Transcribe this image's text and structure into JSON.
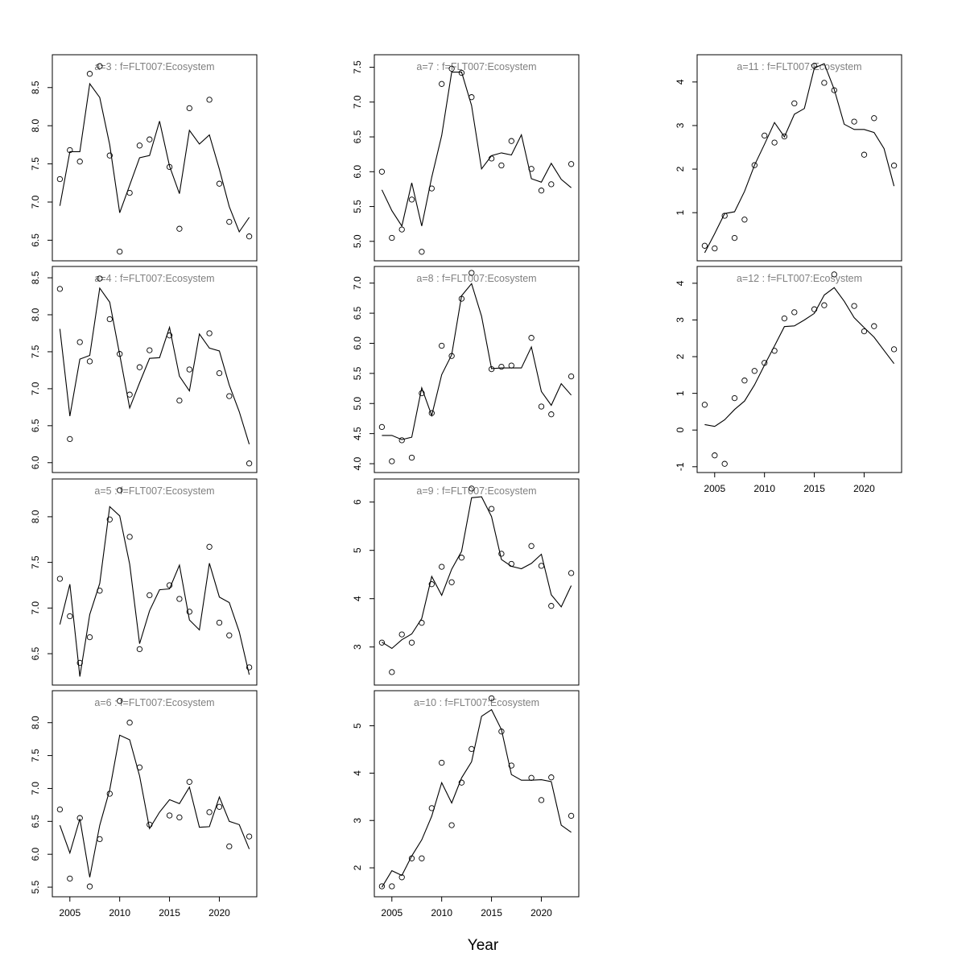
{
  "figure": {
    "xlabel": "Year",
    "x_ticks": [
      2005,
      2010,
      2015,
      2020
    ]
  },
  "chart_data": [
    {
      "type": "scatter",
      "title": "a=3  :  f=FLT007:Ecosystem",
      "xlabel": "",
      "ylabel": "",
      "xlim": [
        2004,
        2023
      ],
      "ylim": [
        6.33,
        8.83
      ],
      "y_ticks": [
        6.5,
        7.0,
        7.5,
        8.0,
        8.5
      ],
      "show_x_ticks": false,
      "series": [
        {
          "mark": "points",
          "x": [
            2004,
            2005,
            2006,
            2007,
            2008,
            2009,
            2010,
            2011,
            2012,
            2013,
            2015,
            2016,
            2017,
            2019,
            2020,
            2021,
            2023
          ],
          "y": [
            7.3,
            7.68,
            7.53,
            8.68,
            8.78,
            7.61,
            6.35,
            7.12,
            7.74,
            7.82,
            7.46,
            6.65,
            8.23,
            8.34,
            7.24,
            6.74,
            6.55
          ]
        },
        {
          "mark": "line",
          "x": [
            2004,
            2005,
            2006,
            2007,
            2008,
            2009,
            2010,
            2011,
            2012,
            2013,
            2014,
            2015,
            2016,
            2017,
            2018,
            2019,
            2020,
            2021,
            2022,
            2023
          ],
          "y": [
            6.95,
            7.66,
            7.66,
            8.55,
            8.37,
            7.75,
            6.86,
            7.22,
            7.58,
            7.61,
            8.06,
            7.47,
            7.11,
            7.94,
            7.76,
            7.88,
            7.43,
            6.94,
            6.61,
            6.8
          ]
        }
      ]
    },
    {
      "type": "scatter",
      "title": "a=4  :  f=FLT007:Ecosystem",
      "xlabel": "",
      "ylabel": "",
      "xlim": [
        2004,
        2023
      ],
      "ylim": [
        5.97,
        8.55
      ],
      "y_ticks": [
        6.0,
        6.5,
        7.0,
        7.5,
        8.0,
        8.5
      ],
      "show_x_ticks": false,
      "series": [
        {
          "mark": "points",
          "x": [
            2004,
            2005,
            2006,
            2007,
            2008,
            2009,
            2010,
            2011,
            2012,
            2013,
            2015,
            2016,
            2017,
            2019,
            2020,
            2021,
            2023
          ],
          "y": [
            8.35,
            6.32,
            7.63,
            7.37,
            8.49,
            7.94,
            7.47,
            6.92,
            7.29,
            7.52,
            7.72,
            6.84,
            7.26,
            7.75,
            7.21,
            6.9,
            5.99
          ]
        },
        {
          "mark": "line",
          "x": [
            2004,
            2005,
            2006,
            2007,
            2008,
            2009,
            2010,
            2011,
            2012,
            2013,
            2014,
            2015,
            2016,
            2017,
            2018,
            2019,
            2020,
            2021,
            2022,
            2023
          ],
          "y": [
            7.81,
            6.63,
            7.4,
            7.45,
            8.36,
            8.17,
            7.46,
            6.74,
            7.08,
            7.41,
            7.42,
            7.83,
            7.17,
            6.97,
            7.74,
            7.55,
            7.51,
            7.05,
            6.69,
            6.25
          ]
        }
      ]
    },
    {
      "type": "scatter",
      "title": "a=5  :  f=FLT007:Ecosystem",
      "xlabel": "",
      "ylabel": "",
      "xlim": [
        2004,
        2023
      ],
      "ylim": [
        6.24,
        8.33
      ],
      "y_ticks": [
        6.5,
        7.0,
        7.5,
        8.0
      ],
      "show_x_ticks": false,
      "series": [
        {
          "mark": "points",
          "x": [
            2004,
            2005,
            2006,
            2007,
            2008,
            2009,
            2010,
            2011,
            2012,
            2013,
            2015,
            2016,
            2017,
            2019,
            2020,
            2021,
            2023
          ],
          "y": [
            7.32,
            6.91,
            6.4,
            6.68,
            7.19,
            7.97,
            8.29,
            7.78,
            6.55,
            7.14,
            7.25,
            7.1,
            6.96,
            7.67,
            6.84,
            6.7,
            6.35
          ]
        },
        {
          "mark": "line",
          "x": [
            2004,
            2005,
            2006,
            2007,
            2008,
            2009,
            2010,
            2011,
            2012,
            2013,
            2014,
            2015,
            2016,
            2017,
            2018,
            2019,
            2020,
            2021,
            2022,
            2023
          ],
          "y": [
            6.82,
            7.26,
            6.25,
            6.93,
            7.27,
            8.11,
            8.01,
            7.48,
            6.61,
            6.97,
            7.2,
            7.21,
            7.47,
            6.87,
            6.76,
            7.49,
            7.12,
            7.06,
            6.74,
            6.27
          ]
        }
      ]
    },
    {
      "type": "scatter",
      "title": "a=6  :  f=FLT007:Ecosystem",
      "xlabel": "",
      "ylabel": "",
      "xlim": [
        2004,
        2023
      ],
      "ylim": [
        5.47,
        8.37
      ],
      "y_ticks": [
        5.5,
        6.0,
        6.5,
        7.0,
        7.5,
        8.0
      ],
      "show_x_ticks": true,
      "series": [
        {
          "mark": "points",
          "x": [
            2004,
            2005,
            2006,
            2007,
            2008,
            2009,
            2010,
            2011,
            2012,
            2013,
            2015,
            2016,
            2017,
            2019,
            2020,
            2021,
            2023
          ],
          "y": [
            6.68,
            5.63,
            6.55,
            5.51,
            6.23,
            6.92,
            8.33,
            8.0,
            7.32,
            6.45,
            6.59,
            6.56,
            7.1,
            6.64,
            6.72,
            6.12,
            6.27
          ]
        },
        {
          "mark": "line",
          "x": [
            2004,
            2005,
            2006,
            2007,
            2008,
            2009,
            2010,
            2011,
            2012,
            2013,
            2014,
            2015,
            2016,
            2017,
            2018,
            2019,
            2020,
            2021,
            2022,
            2023
          ],
          "y": [
            6.44,
            6.02,
            6.54,
            5.65,
            6.44,
            6.98,
            7.81,
            7.74,
            7.19,
            6.39,
            6.64,
            6.83,
            6.77,
            7.02,
            6.41,
            6.42,
            6.87,
            6.5,
            6.45,
            6.08
          ]
        }
      ]
    },
    {
      "type": "scatter",
      "title": "a=7  :  f=FLT007:Ecosystem",
      "xlabel": "",
      "ylabel": "",
      "xlim": [
        2004,
        2023
      ],
      "ylim": [
        4.83,
        7.57
      ],
      "y_ticks": [
        5.0,
        5.5,
        6.0,
        6.5,
        7.0,
        7.5
      ],
      "show_x_ticks": false,
      "series": [
        {
          "mark": "points",
          "x": [
            2004,
            2005,
            2006,
            2007,
            2008,
            2009,
            2010,
            2011,
            2012,
            2013,
            2015,
            2016,
            2017,
            2019,
            2020,
            2021,
            2023
          ],
          "y": [
            6.0,
            5.05,
            5.17,
            5.6,
            4.85,
            5.76,
            7.26,
            7.48,
            7.42,
            7.07,
            6.19,
            6.09,
            6.44,
            6.04,
            5.73,
            5.82,
            6.11
          ]
        },
        {
          "mark": "line",
          "x": [
            2004,
            2005,
            2006,
            2007,
            2008,
            2009,
            2010,
            2011,
            2012,
            2013,
            2014,
            2015,
            2016,
            2017,
            2018,
            2019,
            2020,
            2021,
            2022,
            2023
          ],
          "y": [
            5.74,
            5.44,
            5.22,
            5.84,
            5.22,
            5.92,
            6.52,
            7.43,
            7.43,
            6.95,
            6.04,
            6.23,
            6.27,
            6.24,
            6.53,
            5.9,
            5.85,
            6.12,
            5.89,
            5.77
          ]
        }
      ]
    },
    {
      "type": "scatter",
      "title": "a=8  :  f=FLT007:Ecosystem",
      "xlabel": "",
      "ylabel": "",
      "xlim": [
        2004,
        2023
      ],
      "ylim": [
        3.98,
        7.15
      ],
      "y_ticks": [
        4.0,
        4.5,
        5.0,
        5.5,
        6.0,
        6.5,
        7.0
      ],
      "show_x_ticks": false,
      "series": [
        {
          "mark": "points",
          "x": [
            2004,
            2005,
            2006,
            2007,
            2008,
            2009,
            2010,
            2011,
            2012,
            2013,
            2015,
            2016,
            2017,
            2019,
            2020,
            2021,
            2023
          ],
          "y": [
            4.61,
            4.04,
            4.39,
            4.1,
            5.17,
            4.84,
            5.96,
            5.79,
            6.74,
            7.17,
            5.57,
            5.61,
            5.63,
            6.09,
            4.95,
            4.82,
            5.45
          ]
        },
        {
          "mark": "line",
          "x": [
            2004,
            2005,
            2006,
            2007,
            2008,
            2009,
            2010,
            2011,
            2012,
            2013,
            2014,
            2015,
            2016,
            2017,
            2018,
            2019,
            2020,
            2021,
            2022,
            2023
          ],
          "y": [
            4.47,
            4.47,
            4.4,
            4.44,
            5.26,
            4.8,
            5.48,
            5.81,
            6.79,
            6.99,
            6.45,
            5.58,
            5.59,
            5.59,
            5.59,
            5.94,
            5.2,
            4.97,
            5.33,
            5.14
          ]
        }
      ]
    },
    {
      "type": "scatter",
      "title": "a=9  :  f=FLT007:Ecosystem",
      "xlabel": "",
      "ylabel": "",
      "xlim": [
        2004,
        2023
      ],
      "ylim": [
        2.37,
        6.32
      ],
      "y_ticks": [
        3,
        4,
        5,
        6
      ],
      "show_x_ticks": false,
      "series": [
        {
          "mark": "points",
          "x": [
            2004,
            2005,
            2006,
            2007,
            2008,
            2009,
            2010,
            2011,
            2012,
            2013,
            2015,
            2016,
            2017,
            2019,
            2020,
            2021,
            2023
          ],
          "y": [
            3.09,
            2.48,
            3.26,
            3.09,
            3.5,
            4.3,
            4.66,
            4.34,
            4.85,
            6.28,
            5.86,
            4.93,
            4.72,
            5.09,
            4.68,
            3.85,
            4.53
          ]
        },
        {
          "mark": "line",
          "x": [
            2004,
            2005,
            2006,
            2007,
            2008,
            2009,
            2010,
            2011,
            2012,
            2013,
            2014,
            2015,
            2016,
            2017,
            2018,
            2019,
            2020,
            2021,
            2022,
            2023
          ],
          "y": [
            3.1,
            2.97,
            3.15,
            3.27,
            3.59,
            4.46,
            4.07,
            4.61,
            4.98,
            6.09,
            6.11,
            5.7,
            4.81,
            4.67,
            4.62,
            4.73,
            4.92,
            4.08,
            3.83,
            4.27
          ]
        }
      ]
    },
    {
      "type": "scatter",
      "title": "a=10  :  f=FLT007:Ecosystem",
      "xlabel": "",
      "ylabel": "",
      "xlim": [
        2004,
        2023
      ],
      "ylim": [
        1.55,
        5.58
      ],
      "y_ticks": [
        2,
        3,
        4,
        5
      ],
      "show_x_ticks": true,
      "series": [
        {
          "mark": "points",
          "x": [
            2004,
            2005,
            2006,
            2007,
            2008,
            2009,
            2010,
            2011,
            2012,
            2013,
            2015,
            2016,
            2017,
            2019,
            2020,
            2021,
            2023
          ],
          "y": [
            1.61,
            1.61,
            1.8,
            2.2,
            2.2,
            3.26,
            4.22,
            2.9,
            3.8,
            4.51,
            5.58,
            4.88,
            4.16,
            3.9,
            3.43,
            3.91,
            3.1
          ]
        },
        {
          "mark": "line",
          "x": [
            2004,
            2005,
            2006,
            2007,
            2008,
            2009,
            2010,
            2011,
            2012,
            2013,
            2014,
            2015,
            2016,
            2017,
            2018,
            2019,
            2020,
            2021,
            2022,
            2023
          ],
          "y": [
            1.59,
            1.94,
            1.84,
            2.25,
            2.59,
            3.09,
            3.8,
            3.37,
            3.9,
            4.24,
            5.2,
            5.34,
            4.92,
            3.97,
            3.85,
            3.85,
            3.86,
            3.82,
            2.9,
            2.75
          ]
        }
      ]
    },
    {
      "type": "scatter",
      "title": "a=11  :  f=FLT007:Ecosystem",
      "xlabel": "",
      "ylabel": "",
      "xlim": [
        2004,
        2023
      ],
      "ylim": [
        0.07,
        4.45
      ],
      "y_ticks": [
        1,
        2,
        3,
        4
      ],
      "show_x_ticks": false,
      "series": [
        {
          "mark": "points",
          "x": [
            2004,
            2005,
            2006,
            2007,
            2008,
            2009,
            2010,
            2011,
            2012,
            2013,
            2015,
            2016,
            2017,
            2019,
            2020,
            2021,
            2023
          ],
          "y": [
            0.24,
            0.18,
            0.93,
            0.42,
            0.84,
            2.09,
            2.77,
            2.61,
            2.75,
            3.51,
            4.37,
            3.98,
            3.81,
            3.09,
            2.33,
            3.17,
            2.08
          ]
        },
        {
          "mark": "line",
          "x": [
            2004,
            2005,
            2006,
            2007,
            2008,
            2009,
            2010,
            2011,
            2012,
            2013,
            2014,
            2015,
            2016,
            2017,
            2018,
            2019,
            2020,
            2021,
            2022,
            2023
          ],
          "y": [
            0.08,
            0.52,
            0.98,
            1.02,
            1.49,
            2.09,
            2.57,
            3.07,
            2.74,
            3.26,
            3.39,
            4.32,
            4.42,
            3.83,
            3.03,
            2.91,
            2.91,
            2.84,
            2.47,
            1.61
          ]
        }
      ]
    },
    {
      "type": "scatter",
      "title": "a=12  :  f=FLT007:Ecosystem",
      "xlabel": "",
      "ylabel": "",
      "xlim": [
        2004,
        2023
      ],
      "ylim": [
        -0.95,
        4.25
      ],
      "y_ticks": [
        -1,
        0,
        1,
        2,
        3,
        4
      ],
      "show_x_ticks": true,
      "series": [
        {
          "mark": "points",
          "x": [
            2004,
            2005,
            2006,
            2007,
            2008,
            2009,
            2010,
            2011,
            2012,
            2013,
            2015,
            2016,
            2017,
            2019,
            2020,
            2021,
            2023
          ],
          "y": [
            0.69,
            -0.69,
            -0.92,
            0.87,
            1.35,
            1.61,
            1.83,
            2.16,
            3.04,
            3.21,
            3.29,
            3.4,
            4.24,
            3.38,
            2.69,
            2.83,
            2.2
          ]
        },
        {
          "mark": "line",
          "x": [
            2004,
            2005,
            2006,
            2007,
            2008,
            2009,
            2010,
            2011,
            2012,
            2013,
            2014,
            2015,
            2016,
            2017,
            2018,
            2019,
            2020,
            2021,
            2022,
            2023
          ],
          "y": [
            0.15,
            0.1,
            0.28,
            0.56,
            0.79,
            1.23,
            1.77,
            2.29,
            2.82,
            2.84,
            3.0,
            3.18,
            3.68,
            3.88,
            3.51,
            3.06,
            2.79,
            2.53,
            2.17,
            1.81
          ]
        }
      ]
    }
  ]
}
